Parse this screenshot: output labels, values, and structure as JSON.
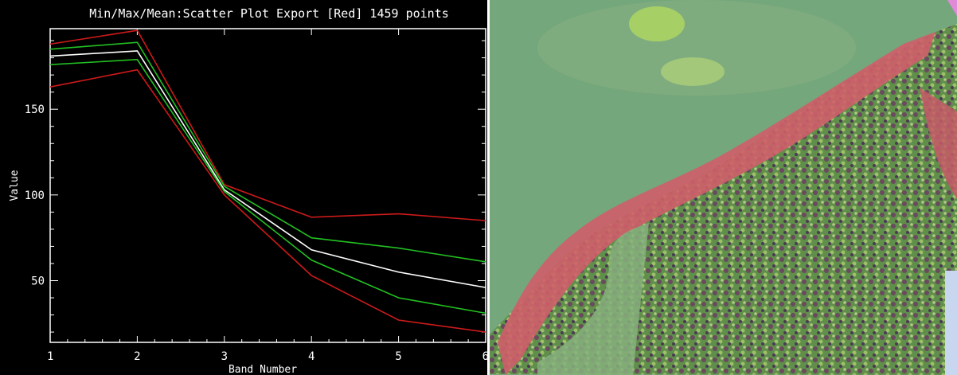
{
  "chart_data": {
    "type": "line",
    "title": "Min/Max/Mean:Scatter Plot Export [Red] 1459 points",
    "xlabel": "Band Number",
    "ylabel": "Value",
    "x": [
      1,
      2,
      3,
      4,
      5,
      6
    ],
    "xlim": [
      1,
      6
    ],
    "ylim": [
      14,
      197
    ],
    "xticks": [
      "1",
      "2",
      "3",
      "4",
      "5",
      "6"
    ],
    "yticks": [
      50,
      100,
      150
    ],
    "ytick_labels": [
      "50",
      "100",
      "150"
    ],
    "series": [
      {
        "color": "#cc1a1a",
        "values": [
          188,
          196,
          106,
          87,
          89,
          85
        ]
      },
      {
        "color": "#22c022",
        "values": [
          185,
          189,
          105,
          75,
          69,
          61
        ]
      },
      {
        "color": "#ffffff",
        "values": [
          181,
          184,
          103,
          68,
          55,
          46
        ]
      },
      {
        "color": "#22c022",
        "values": [
          176,
          179,
          102,
          62,
          40,
          31
        ]
      },
      {
        "color": "#cc1a1a",
        "values": [
          163,
          173,
          100,
          53,
          27,
          20
        ]
      }
    ],
    "grid": false,
    "legend": "none"
  },
  "colors": {
    "background": "#000000",
    "axes": "#ffffff",
    "min_max": "#cc1a1a",
    "std": "#22c022",
    "mean": "#ffffff"
  },
  "image": {
    "content-icon": "satellite-false-color-coastline-icon"
  }
}
